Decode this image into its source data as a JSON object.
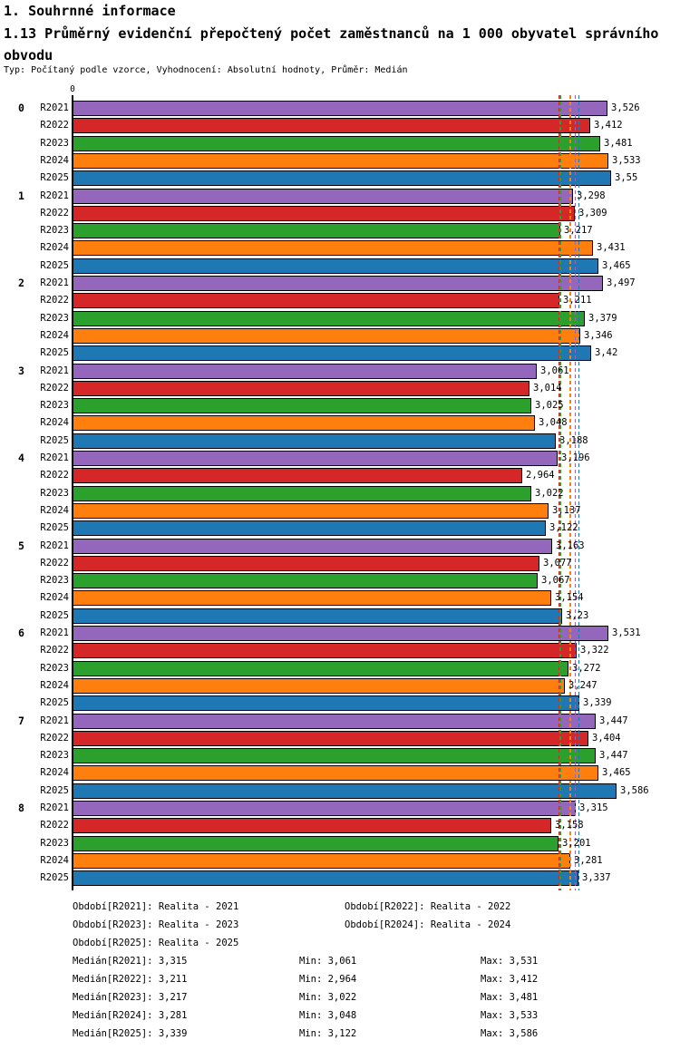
{
  "header": {
    "line1": "1. Souhrnné informace",
    "line2": "1.13 Průměrný evidenční přepočtený počet zaměstnanců na 1 000 obyvatel správního obvodu",
    "meta": "Typ: Počítaný podle vzorce, Vyhodnocení: Absolutní hodnoty, Průměr: Medián"
  },
  "chart_data": {
    "type": "bar",
    "orientation": "horizontal",
    "origin_tick_label": "0",
    "xlim": [
      0,
      4.0
    ],
    "grid": false,
    "legend_position": "bottom",
    "categories": [
      "0",
      "1",
      "2",
      "3",
      "4",
      "5",
      "6",
      "7",
      "8"
    ],
    "row_labels": [
      "R2021",
      "R2022",
      "R2023",
      "R2024",
      "R2025"
    ],
    "series": [
      {
        "name": "R2021",
        "color": "#9467bd",
        "median": 3.315,
        "values": [
          3.526,
          3.298,
          3.497,
          3.061,
          3.196,
          3.163,
          3.531,
          3.447,
          3.315
        ],
        "value_labels": [
          "3,526",
          "3,298",
          "3,497",
          "3,061",
          "3,196",
          "3,163",
          "3,531",
          "3,447",
          "3,315"
        ]
      },
      {
        "name": "R2022",
        "color": "#d62728",
        "median": 3.211,
        "values": [
          3.412,
          3.309,
          3.211,
          3.014,
          2.964,
          3.077,
          3.322,
          3.404,
          3.158
        ],
        "value_labels": [
          "3,412",
          "3,309",
          "3,211",
          "3,014",
          "2,964",
          "3,077",
          "3,322",
          "3,404",
          "3,158"
        ]
      },
      {
        "name": "R2023",
        "color": "#2ca02c",
        "median": 3.217,
        "values": [
          3.481,
          3.217,
          3.379,
          3.025,
          3.022,
          3.067,
          3.272,
          3.447,
          3.201
        ],
        "value_labels": [
          "3,481",
          "3,217",
          "3,379",
          "3,025",
          "3,022",
          "3,067",
          "3,272",
          "3,447",
          "3,201"
        ]
      },
      {
        "name": "R2024",
        "color": "#ff7f0e",
        "median": 3.281,
        "values": [
          3.533,
          3.431,
          3.346,
          3.048,
          3.137,
          3.154,
          3.247,
          3.465,
          3.281
        ],
        "value_labels": [
          "3,533",
          "3,431",
          "3,346",
          "3,048",
          "3,137",
          "3,154",
          "3,247",
          "3,465",
          "3,281"
        ]
      },
      {
        "name": "R2025",
        "color": "#1f77b4",
        "median": 3.339,
        "values": [
          3.55,
          3.465,
          3.42,
          3.188,
          3.122,
          3.23,
          3.339,
          3.586,
          3.337
        ],
        "value_labels": [
          "3,55",
          "3,465",
          "3,42",
          "3,188",
          "3,122",
          "3,23",
          "3,339",
          "3,586",
          "3,337"
        ]
      }
    ]
  },
  "legend": {
    "items": [
      {
        "text": "Období[R2021]: Realita - 2021",
        "row": 0,
        "col": 0
      },
      {
        "text": "Období[R2022]: Realita - 2022",
        "row": 0,
        "col": 1
      },
      {
        "text": "Období[R2023]: Realita - 2023",
        "row": 1,
        "col": 0
      },
      {
        "text": "Období[R2024]: Realita - 2024",
        "row": 1,
        "col": 1
      },
      {
        "text": "Období[R2025]: Realita - 2025",
        "row": 2,
        "col": 0
      }
    ]
  },
  "stats": {
    "rows": [
      {
        "median": "Medián[R2021]: 3,315",
        "min": "Min: 3,061",
        "max": "Max: 3,531"
      },
      {
        "median": "Medián[R2022]: 3,211",
        "min": "Min: 2,964",
        "max": "Max: 3,412"
      },
      {
        "median": "Medián[R2023]: 3,217",
        "min": "Min: 3,022",
        "max": "Max: 3,481"
      },
      {
        "median": "Medián[R2024]: 3,281",
        "min": "Min: 3,048",
        "max": "Max: 3,533"
      },
      {
        "median": "Medián[R2025]: 3,339",
        "min": "Min: 3,122",
        "max": "Max: 3,586"
      }
    ]
  }
}
